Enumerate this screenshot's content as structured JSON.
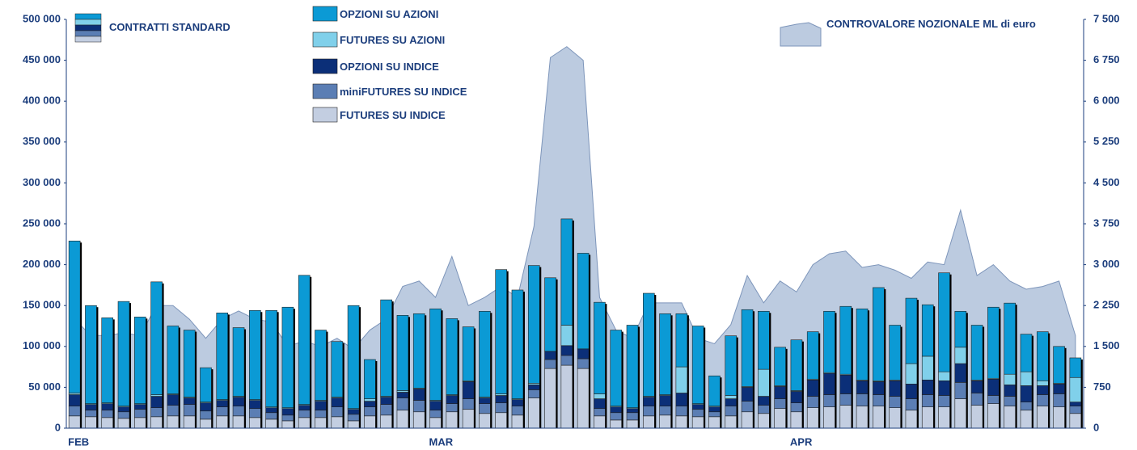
{
  "chart_data": {
    "type": "bar",
    "legend_title": "CONTRATTI STANDARD",
    "categories": [
      "FEB",
      null,
      null,
      null,
      null,
      null,
      null,
      null,
      null,
      null,
      null,
      null,
      null,
      null,
      null,
      null,
      null,
      null,
      null,
      null,
      null,
      null,
      "MAR",
      null,
      null,
      null,
      null,
      null,
      null,
      null,
      null,
      null,
      null,
      null,
      null,
      null,
      null,
      null,
      null,
      null,
      null,
      null,
      null,
      null,
      "APR",
      null,
      null,
      null,
      null,
      null,
      null,
      null,
      null,
      null,
      null,
      null,
      null,
      null,
      null,
      null,
      null,
      null
    ],
    "ylim": [
      0,
      500000
    ],
    "yticks": [
      0,
      {
        "value": 50000,
        "label": "50 000"
      },
      {
        "value": 100000,
        "label": "100 000"
      },
      {
        "value": 150000,
        "label": "150 000"
      },
      {
        "value": 200000,
        "label": "200 000"
      },
      {
        "value": 250000,
        "label": "250 000"
      },
      {
        "value": 300000,
        "label": "300 000"
      },
      {
        "value": 350000,
        "label": "350 000"
      },
      {
        "value": 400000,
        "label": "400 000"
      },
      {
        "value": 450000,
        "label": "450 000"
      },
      {
        "value": 500000,
        "label": "500 000"
      }
    ],
    "y2lim": [
      0,
      7500
    ],
    "y2ticks": [
      0,
      750,
      {
        "value": 1500,
        "label": "1 500"
      },
      {
        "value": 2250,
        "label": "2 250"
      },
      {
        "value": 3000,
        "label": "3 000"
      },
      {
        "value": 3750,
        "label": "3 750"
      },
      {
        "value": 4500,
        "label": "4 500"
      },
      {
        "value": 5250,
        "label": "5 250"
      },
      {
        "value": 6000,
        "label": "6 000"
      },
      {
        "value": 6750,
        "label": "6 750"
      },
      {
        "value": 7500,
        "label": "7 500"
      }
    ],
    "series": [
      {
        "name": "FUTURES SU INDICE",
        "color": "#c3cee1",
        "values": [
          15000,
          14000,
          13000,
          12000,
          13000,
          14000,
          15000,
          15000,
          11000,
          15000,
          15000,
          13000,
          11000,
          9000,
          13000,
          13000,
          14000,
          9000,
          15000,
          16000,
          22000,
          20000,
          13000,
          20000,
          23000,
          18000,
          19000,
          16000,
          37000,
          73000,
          77000,
          73000,
          15000,
          10000,
          10000,
          15000,
          16000,
          15000,
          14000,
          14000,
          15000,
          20000,
          18000,
          24000,
          20000,
          25000,
          26000,
          28000,
          27000,
          27000,
          25000,
          22000,
          26000,
          26000,
          36000,
          28000,
          30000,
          27000,
          22000,
          27000,
          26000,
          18000
        ]
      },
      {
        "name": "miniFUTURES SU INDICE",
        "color": "#5b7eb4",
        "values": [
          12000,
          8000,
          9000,
          8000,
          10000,
          11000,
          13000,
          14000,
          10000,
          11000,
          12000,
          11000,
          8000,
          7000,
          9000,
          9000,
          12000,
          8000,
          11000,
          13000,
          15000,
          14000,
          9000,
          10000,
          13000,
          12000,
          12000,
          11000,
          10000,
          11000,
          12000,
          12000,
          9000,
          9000,
          9000,
          12000,
          11000,
          12000,
          9000,
          6000,
          12000,
          13000,
          10000,
          12000,
          11000,
          14000,
          15000,
          14000,
          15000,
          14000,
          14000,
          14000,
          15000,
          14000,
          20000,
          15000,
          10000,
          12000,
          10000,
          14000,
          16000,
          9000
        ]
      },
      {
        "name": "OPZIONI SU INDICE",
        "color": "#0b2f78",
        "values": [
          14000,
          7000,
          8000,
          6000,
          6000,
          14000,
          13000,
          8000,
          10000,
          8000,
          11000,
          10000,
          6000,
          8000,
          6000,
          11000,
          11000,
          6000,
          7000,
          9000,
          7000,
          14000,
          11000,
          10000,
          21000,
          7000,
          9000,
          8000,
          6000,
          10000,
          12000,
          12000,
          12000,
          7000,
          5000,
          11000,
          13000,
          16000,
          6000,
          6000,
          9000,
          17000,
          11000,
          15000,
          14000,
          20000,
          26000,
          23000,
          16000,
          16000,
          19000,
          18000,
          18000,
          18000,
          23000,
          15000,
          20000,
          14000,
          20000,
          11000,
          12000,
          5000
        ]
      },
      {
        "name": "FUTURES SU AZIONI",
        "color": "#80d0ea",
        "values": [
          2000,
          1000,
          1000,
          1000,
          1000,
          2000,
          1000,
          1000,
          1000,
          1000,
          1000,
          1000,
          1000,
          1000,
          1000,
          1000,
          1000,
          1000,
          3000,
          1000,
          2000,
          1000,
          1000,
          1000,
          1000,
          1000,
          2000,
          1000,
          2000,
          0,
          25000,
          0,
          6000,
          1000,
          1000,
          1000,
          1000,
          32000,
          1000,
          1000,
          4000,
          1000,
          33000,
          1000,
          1000,
          1000,
          1000,
          1000,
          1000,
          1000,
          1000,
          25000,
          29000,
          11000,
          20000,
          1000,
          1000,
          13000,
          17000,
          6000,
          1000,
          30000
        ]
      },
      {
        "name": "OPZIONI SU AZIONI",
        "color": "#0b9ad5",
        "values": [
          186000,
          120000,
          104000,
          128000,
          106000,
          138000,
          83000,
          82000,
          42000,
          106000,
          84000,
          109000,
          118000,
          123000,
          158000,
          86000,
          68000,
          126000,
          48000,
          118000,
          92000,
          91000,
          112000,
          93000,
          66000,
          105000,
          152000,
          133000,
          144000,
          90000,
          130000,
          117000,
          112000,
          93000,
          101000,
          126000,
          99000,
          65000,
          95000,
          37000,
          73000,
          94000,
          71000,
          47000,
          62000,
          58000,
          75000,
          83000,
          87000,
          114000,
          67000,
          80000,
          63000,
          121000,
          44000,
          67000,
          87000,
          87000,
          46000,
          60000,
          45000,
          24000
        ]
      },
      {
        "name": "CONTROVALORE NOZIONALE ML di euro",
        "type": "area",
        "axis": "y2",
        "color": "#bccbe0",
        "values": [
          2000,
          1700,
          1700,
          1750,
          1700,
          2250,
          2250,
          2000,
          1650,
          2000,
          2150,
          2000,
          1950,
          1500,
          1600,
          1500,
          1650,
          1450,
          1800,
          2000,
          2600,
          2700,
          2400,
          3150,
          2250,
          2400,
          2600,
          2400,
          3700,
          6800,
          7000,
          6750,
          2400,
          1800,
          1650,
          2300,
          2300,
          2300,
          1650,
          1550,
          1900,
          2800,
          2300,
          2700,
          2500,
          3000,
          3200,
          3250,
          2950,
          3000,
          2900,
          2750,
          3050,
          3000,
          4000,
          2800,
          3000,
          2700,
          2550,
          2600,
          2700,
          1700
        ]
      }
    ]
  }
}
